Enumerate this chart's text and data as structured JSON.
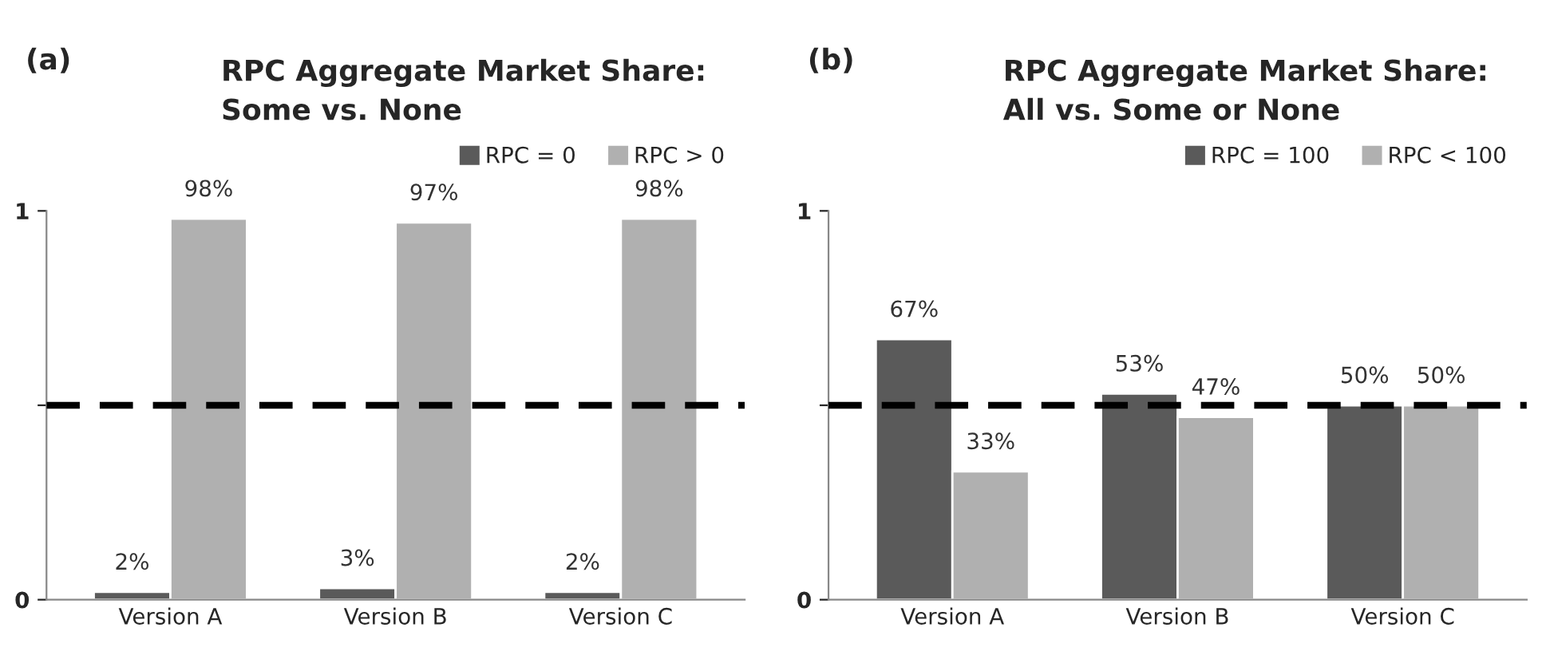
{
  "chart_data": [
    {
      "type": "bar",
      "title": "RPC Aggregate Market Share:\nSome vs. None",
      "annotations": [
        "(a)"
      ],
      "categories": [
        "Version A",
        "Version B",
        "Version C"
      ],
      "series": [
        {
          "name": "RPC = 0",
          "color": "#5a5a5a",
          "values": [
            0.02,
            0.03,
            0.02
          ],
          "value_labels": [
            "2%",
            "3%",
            "2%"
          ]
        },
        {
          "name": "RPC > 0",
          "color": "#b0b0b0",
          "values": [
            0.98,
            0.97,
            0.98
          ],
          "value_labels": [
            "98%",
            "97%",
            "98%"
          ]
        }
      ],
      "ylim": [
        0,
        1
      ],
      "yticks": [
        0,
        {
          "value": 0.5,
          "label": null
        },
        1
      ],
      "ref_lines": [
        {
          "axis": "y",
          "value": 0.5,
          "label": null,
          "color": "#000000",
          "line_style": "dashed"
        }
      ],
      "legend": "top right",
      "grid": false
    },
    {
      "type": "bar",
      "title": "RPC Aggregate Market Share:\nAll vs. Some or None",
      "annotations": [
        "(b)"
      ],
      "categories": [
        "Version A",
        "Version B",
        "Version C"
      ],
      "series": [
        {
          "name": "RPC = 100",
          "color": "#5a5a5a",
          "values": [
            0.67,
            0.53,
            0.5
          ],
          "value_labels": [
            "67%",
            "53%",
            "50%"
          ]
        },
        {
          "name": "RPC < 100",
          "color": "#b0b0b0",
          "values": [
            0.33,
            0.47,
            0.5
          ],
          "value_labels": [
            "33%",
            "47%",
            "50%"
          ]
        }
      ],
      "ylim": [
        0,
        1
      ],
      "yticks": [
        0,
        {
          "value": 0.5,
          "label": null
        },
        1
      ],
      "ref_lines": [
        {
          "axis": "y",
          "value": 0.5,
          "label": null,
          "color": "#000000",
          "line_style": "dashed"
        }
      ],
      "legend": "top right",
      "grid": false
    }
  ]
}
